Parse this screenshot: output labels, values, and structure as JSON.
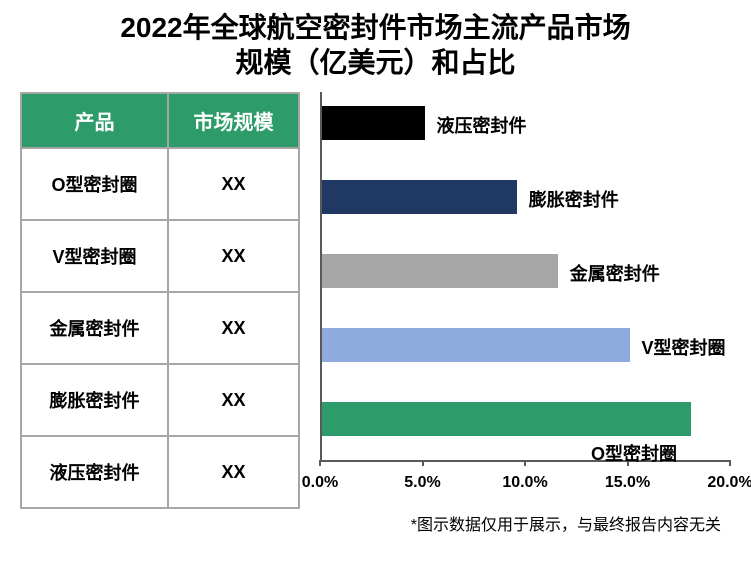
{
  "title_line1": "2022年全球航空密封件市场主流产品市场",
  "title_line2": "规模（亿美元）和占比",
  "title_fontsize": 28,
  "title_color": "#000000",
  "table": {
    "header_bg": "#2e9c6a",
    "header_fg": "#ffffff",
    "border_color": "#a6a6a6",
    "col_product": "产品",
    "col_size": "市场规模",
    "cell_fontsize": 18,
    "header_fontsize": 20,
    "rows": [
      {
        "product": "O型密封圈",
        "size": "XX"
      },
      {
        "product": "V型密封圈",
        "size": "XX"
      },
      {
        "product": "金属密封件",
        "size": "XX"
      },
      {
        "product": "膨胀密封件",
        "size": "XX"
      },
      {
        "product": "液压密封件",
        "size": "XX"
      }
    ]
  },
  "chart": {
    "type": "bar-horizontal",
    "xmin": 0.0,
    "xmax": 20.0,
    "xtick_step": 5.0,
    "xtick_labels": [
      "0.0%",
      "5.0%",
      "10.0%",
      "15.0%",
      "20.0%"
    ],
    "tick_fontsize": 16,
    "axis_color": "#595959",
    "background_color": "#ffffff",
    "bar_label_fontsize": 18,
    "bars": [
      {
        "label": "液压密封件",
        "value": 5.0,
        "color": "#000000",
        "label_side": "right"
      },
      {
        "label": "膨胀密封件",
        "value": 9.5,
        "color": "#203864",
        "label_side": "right"
      },
      {
        "label": "金属密封件",
        "value": 11.5,
        "color": "#a6a6a6",
        "label_side": "right"
      },
      {
        "label": "V型密封圈",
        "value": 15.0,
        "color": "#8faadc",
        "label_side": "right"
      },
      {
        "label": "O型密封圈",
        "value": 18.0,
        "color": "#2e9c6a",
        "label_side": "below"
      }
    ]
  },
  "footnote": "*图示数据仅用于展示，与最终报告内容无关",
  "footnote_fontsize": 16
}
